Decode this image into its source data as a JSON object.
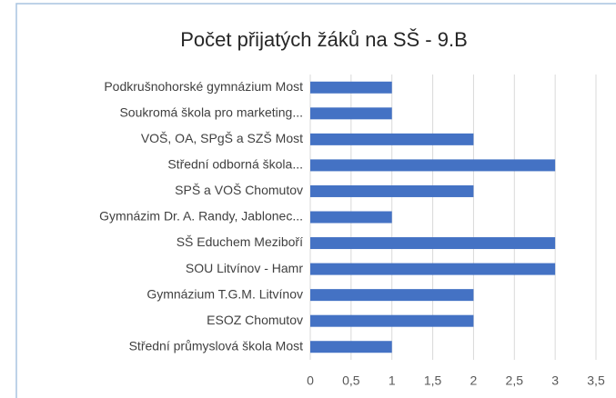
{
  "chart_data": {
    "type": "bar",
    "orientation": "horizontal",
    "title": "Počet přijatých žáků na SŠ - 9.B",
    "categories": [
      "Podkrušnohorské gymnázium Most",
      "Soukromá škola pro marketing...",
      "VOŠ, OA, SPgŠ a SZŠ Most",
      "Střední odborná škola...",
      "SPŠ a VOŠ Chomutov",
      "Gymnázim Dr. A. Randy, Jablonec...",
      "SŠ Educhem Meziboří",
      "SOU Litvínov - Hamr",
      "Gymnázium T.G.M. Litvínov",
      "ESOZ Chomutov",
      "Střední průmyslová škola Most"
    ],
    "values": [
      1,
      1,
      2,
      3,
      2,
      1,
      3,
      3,
      2,
      2,
      1
    ],
    "color": "#4472c4",
    "xlim": [
      0,
      3.5
    ],
    "xticks": [
      0,
      {
        "value": 0.5,
        "label": "0,5"
      },
      1,
      {
        "value": 1.5,
        "label": "1,5"
      },
      2,
      {
        "value": 2.5,
        "label": "2,5"
      },
      3,
      {
        "value": 3.5,
        "label": "3,5"
      }
    ],
    "grid": true
  }
}
